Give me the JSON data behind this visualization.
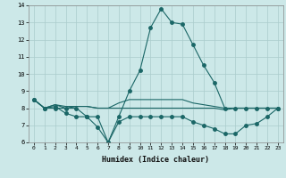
{
  "xlabel": "Humidex (Indice chaleur)",
  "x": [
    0,
    1,
    2,
    3,
    4,
    5,
    6,
    7,
    8,
    9,
    10,
    11,
    12,
    13,
    14,
    15,
    16,
    17,
    18,
    19,
    20,
    21,
    22,
    23
  ],
  "line1": [
    8.5,
    8.0,
    8.0,
    8.0,
    8.0,
    7.5,
    7.5,
    6.0,
    7.5,
    9.0,
    10.2,
    12.7,
    13.8,
    13.0,
    12.9,
    11.7,
    10.5,
    9.5,
    8.0,
    8.0,
    8.0,
    8.0,
    8.0,
    8.0
  ],
  "line2": [
    8.5,
    8.0,
    8.2,
    8.0,
    8.1,
    8.1,
    8.0,
    8.0,
    8.0,
    8.0,
    8.0,
    8.0,
    8.0,
    8.0,
    8.0,
    8.0,
    8.0,
    8.0,
    7.9,
    8.0,
    8.0,
    8.0,
    8.0,
    8.0
  ],
  "line3": [
    8.5,
    8.0,
    8.1,
    7.7,
    7.5,
    7.5,
    6.9,
    6.0,
    7.2,
    7.5,
    7.5,
    7.5,
    7.5,
    7.5,
    7.5,
    7.2,
    7.0,
    6.8,
    6.5,
    6.5,
    7.0,
    7.1,
    7.5,
    8.0
  ],
  "line4": [
    8.5,
    8.0,
    8.2,
    8.1,
    8.1,
    8.1,
    8.0,
    8.0,
    8.3,
    8.5,
    8.5,
    8.5,
    8.5,
    8.5,
    8.5,
    8.3,
    8.2,
    8.1,
    8.0,
    8.0,
    8.0,
    8.0,
    8.0,
    8.0
  ],
  "bg_color": "#cce8e8",
  "grid_color": "#aacccc",
  "line_color": "#1a6666",
  "ylim": [
    6,
    14
  ],
  "xlim": [
    -0.5,
    23.5
  ]
}
